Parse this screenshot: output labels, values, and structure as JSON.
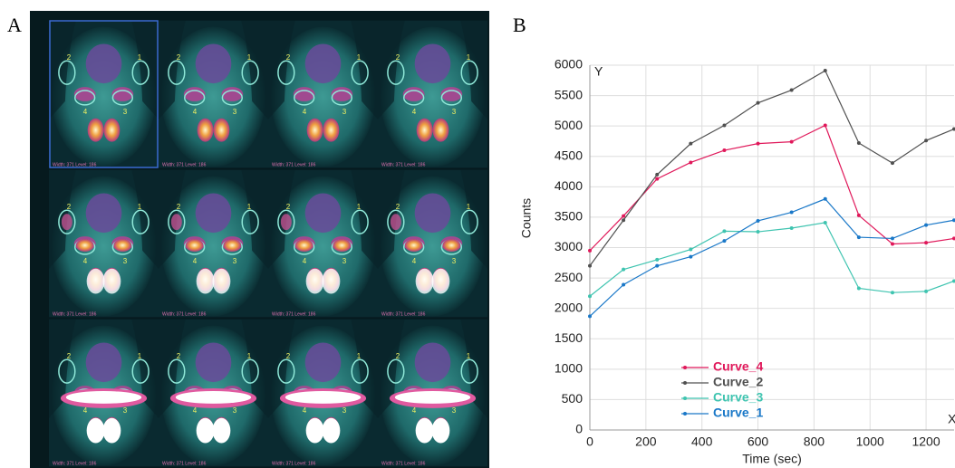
{
  "panels": {
    "a_label": "A",
    "b_label": "B"
  },
  "image_panel": {
    "frame_caption": "Width: 371 Level: 186",
    "roi_labels": [
      "1",
      "2",
      "3",
      "4"
    ]
  },
  "chart_data": {
    "type": "line",
    "x_label": "Time (sec)",
    "y_label": "Counts",
    "y_axis_letter": "Y",
    "x_axis_letter": "X",
    "x": [
      0,
      120,
      240,
      360,
      480,
      600,
      720,
      840,
      960,
      1080,
      1200,
      1300
    ],
    "series": [
      {
        "name": "Curve_4",
        "color": "#e0185a",
        "values": [
          2950,
          3520,
          4130,
          4400,
          4600,
          4710,
          4740,
          5010,
          3530,
          3060,
          3080,
          3150
        ]
      },
      {
        "name": "Curve_2",
        "color": "#505050",
        "values": [
          2700,
          3450,
          4200,
          4710,
          5010,
          5380,
          5590,
          5910,
          4720,
          4390,
          4760,
          4950
        ]
      },
      {
        "name": "Curve_3",
        "color": "#3fc4b0",
        "values": [
          2200,
          2640,
          2800,
          2970,
          3270,
          3260,
          3320,
          3410,
          2330,
          2260,
          2280,
          2450
        ]
      },
      {
        "name": "Curve_1",
        "color": "#1a78c8",
        "values": [
          1870,
          2390,
          2700,
          2850,
          3110,
          3440,
          3580,
          3800,
          3170,
          3150,
          3370,
          3450
        ]
      }
    ],
    "xlim": [
      0,
      1300
    ],
    "ylim": [
      0,
      6000
    ],
    "xticks": [
      0,
      200,
      400,
      600,
      800,
      1000,
      1200
    ],
    "yticks": [
      0,
      500,
      1000,
      1500,
      2000,
      2500,
      3000,
      3500,
      4000,
      4500,
      5000,
      5500,
      6000
    ],
    "grid": true,
    "legend": "lower left"
  }
}
